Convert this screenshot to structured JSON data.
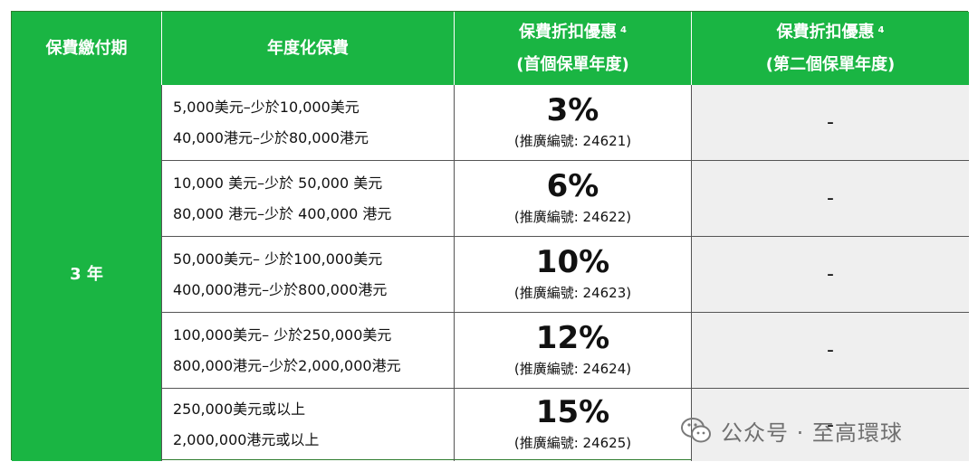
{
  "headers": {
    "term": "保費繳付期",
    "premium": "年度化保費",
    "discount_first_line1": "保費折扣優惠",
    "discount_first_sup": "4",
    "discount_first_line2": "(首個保單年度)",
    "discount_second_line1": "保費折扣優惠",
    "discount_second_sup": "4",
    "discount_second_line2": "(第二個保單年度)"
  },
  "term_value": "3 年",
  "rows": [
    {
      "usd": "5,000美元–少於10,000美元",
      "hkd": "40,000港元–少於80,000港元",
      "discount": "3%",
      "code": "(推廣編號: 24621)",
      "second_year": "-"
    },
    {
      "usd": "10,000 美元–少於 50,000 美元",
      "hkd": "80,000 港元–少於 400,000 港元",
      "discount": "6%",
      "code": "(推廣編號: 24622)",
      "second_year": "-"
    },
    {
      "usd": "50,000美元– 少於100,000美元",
      "hkd": "400,000港元–少於800,000港元",
      "discount": "10%",
      "code": "(推廣編號: 24623)",
      "second_year": "-"
    },
    {
      "usd": "100,000美元– 少於250,000美元",
      "hkd": "800,000港元–少於2,000,000港元",
      "discount": "12%",
      "code": "(推廣編號: 24624)",
      "second_year": "-"
    },
    {
      "usd": "250,000美元或以上",
      "hkd": "2,000,000港元或以上",
      "discount": "15%",
      "code": "(推廣編號: 24625)",
      "second_year": "-"
    }
  ],
  "watermark": {
    "text": "公众号 · 至高環球",
    "icon": "wechat-icon"
  },
  "colors": {
    "header_green": "#1ab543",
    "second_col_bg": "#efefef"
  }
}
